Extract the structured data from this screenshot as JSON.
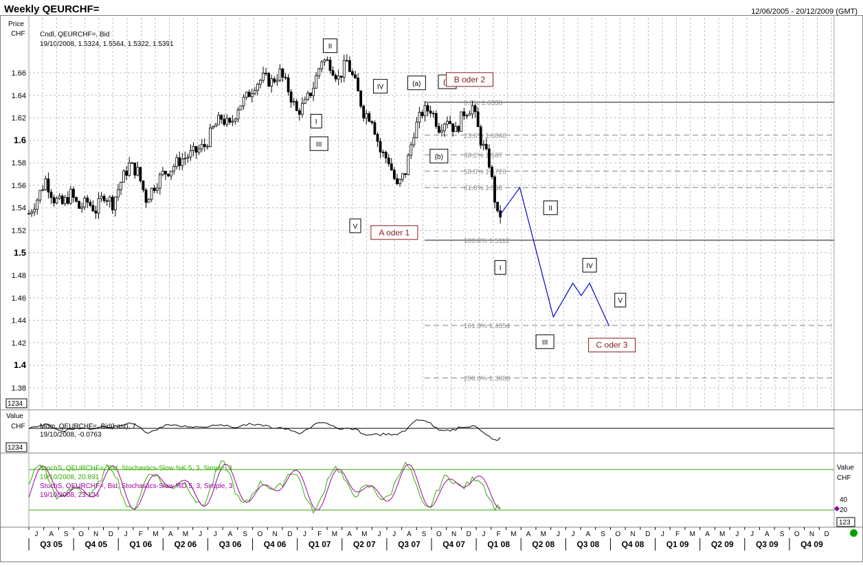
{
  "header": {
    "title": "Weekly QEURCHF=",
    "date_range": "12/06/2005 - 20/12/2009 (GMT)"
  },
  "colors": {
    "background": "#ffffff",
    "grid": "#c0c0c0",
    "candle": "#000000",
    "fib": "#909090",
    "forecast": "#0000cc",
    "annotation_red": "#8b1a1a",
    "stoch_k": "#33aa00",
    "stoch_d": "#990099",
    "status_dot": "#00a000"
  },
  "panes": {
    "price": {
      "axis_title": "Price",
      "axis_unit": "CHF",
      "series_label": "Cndl, QEURCHF=, Bid",
      "last_bar": "19/10/2008, 1.5324, 1.5564, 1.5322, 1.5391",
      "scale_box": "1234"
    },
    "momentum": {
      "axis_title": "Value",
      "axis_unit": "CHF",
      "series_label": "Mom, QEURCHF=, Bid(Last), 7",
      "last_value": "19/10/2008, -0.0763",
      "scale_box": "1234"
    },
    "stochastics": {
      "axis_title": "Value",
      "axis_unit": "CHF",
      "k_label": "StochS, QEURCHF=, Bid, Stochastics-Slow %K 5, 3, Simple, 3",
      "k_value": "19/10/2008, 20.891",
      "d_label": "StochS, QEURCHF=, Bid, Stochastics-Slow %D 5, 3, Simple, 3",
      "d_value": "19/10/2008, 23.134",
      "scale_box": "123",
      "tick_labels": [
        "40",
        "20"
      ]
    }
  },
  "x_axis": {
    "months": [
      "J",
      "A",
      "S",
      "O",
      "N",
      "D",
      "J",
      "F",
      "M",
      "A",
      "M",
      "J",
      "J",
      "A",
      "S",
      "O",
      "N",
      "D",
      "J",
      "F",
      "M",
      "A",
      "M",
      "J",
      "J",
      "A",
      "S",
      "O",
      "N",
      "D",
      "J",
      "F",
      "M",
      "A",
      "M",
      "J",
      "J",
      "A",
      "S",
      "O",
      "N",
      "D",
      "J",
      "F",
      "M",
      "A",
      "M",
      "J",
      "J",
      "A",
      "S",
      "O",
      "N",
      "D"
    ],
    "quarters": [
      "Q3 05",
      "Q4 05",
      "Q1 06",
      "Q2 06",
      "Q3 06",
      "Q4 06",
      "Q1 07",
      "Q2 07",
      "Q3 07",
      "Q4 07",
      "Q1 08",
      "Q2 08",
      "Q3 08",
      "Q4 08",
      "Q1 09",
      "Q2 09",
      "Q3 09",
      "Q4 09"
    ]
  },
  "chart_data": {
    "type": "candlestick",
    "title": "Weekly QEURCHF=",
    "ylabel": "CHF",
    "ylim": [
      1.37,
      1.695
    ],
    "y_ticks": [
      {
        "value": 1.66,
        "label": "1.66",
        "major": false
      },
      {
        "value": 1.64,
        "label": "1.64",
        "major": false
      },
      {
        "value": 1.62,
        "label": "1.62",
        "major": false
      },
      {
        "value": 1.6,
        "label": "1.6",
        "major": true
      },
      {
        "value": 1.58,
        "label": "1.58",
        "major": false
      },
      {
        "value": 1.56,
        "label": "1.56",
        "major": false
      },
      {
        "value": 1.54,
        "label": "1.54",
        "major": false
      },
      {
        "value": 1.52,
        "label": "1.52",
        "major": false
      },
      {
        "value": 1.5,
        "label": "1.5",
        "major": true
      },
      {
        "value": 1.48,
        "label": "1.48",
        "major": false
      },
      {
        "value": 1.46,
        "label": "1.46",
        "major": false
      },
      {
        "value": 1.44,
        "label": "1.44",
        "major": false
      },
      {
        "value": 1.42,
        "label": "1.42",
        "major": false
      },
      {
        "value": 1.4,
        "label": "1.4",
        "major": true
      },
      {
        "value": 1.38,
        "label": "1.38",
        "major": false
      }
    ],
    "close_path": [
      [
        0,
        1.535
      ],
      [
        3,
        1.548
      ],
      [
        6,
        1.565
      ],
      [
        9,
        1.548
      ],
      [
        12,
        1.543
      ],
      [
        15,
        1.552
      ],
      [
        18,
        1.54
      ],
      [
        21,
        1.545
      ],
      [
        24,
        1.538
      ],
      [
        27,
        1.552
      ],
      [
        30,
        1.544
      ],
      [
        33,
        1.563
      ],
      [
        36,
        1.578
      ],
      [
        39,
        1.572
      ],
      [
        42,
        1.548
      ],
      [
        45,
        1.56
      ],
      [
        48,
        1.57
      ],
      [
        51,
        1.575
      ],
      [
        54,
        1.582
      ],
      [
        57,
        1.586
      ],
      [
        60,
        1.59
      ],
      [
        63,
        1.595
      ],
      [
        66,
        1.61
      ],
      [
        69,
        1.62
      ],
      [
        72,
        1.612
      ],
      [
        75,
        1.63
      ],
      [
        78,
        1.638
      ],
      [
        81,
        1.65
      ],
      [
        84,
        1.655
      ],
      [
        87,
        1.652
      ],
      [
        90,
        1.66
      ],
      [
        93,
        1.645
      ],
      [
        96,
        1.625
      ],
      [
        99,
        1.632
      ],
      [
        102,
        1.648
      ],
      [
        105,
        1.672
      ],
      [
        108,
        1.668
      ],
      [
        111,
        1.655
      ],
      [
        114,
        1.67
      ],
      [
        117,
        1.65
      ],
      [
        120,
        1.625
      ],
      [
        123,
        1.62
      ],
      [
        126,
        1.59
      ],
      [
        129,
        1.582
      ],
      [
        132,
        1.558
      ],
      [
        135,
        1.572
      ],
      [
        138,
        1.608
      ],
      [
        141,
        1.625
      ],
      [
        144,
        1.628
      ],
      [
        147,
        1.612
      ],
      [
        150,
        1.62
      ],
      [
        153,
        1.608
      ],
      [
        156,
        1.625
      ],
      [
        159,
        1.63
      ],
      [
        162,
        1.6
      ],
      [
        165,
        1.58
      ],
      [
        168,
        1.532
      ],
      [
        169,
        1.534
      ]
    ],
    "fib_levels": [
      {
        "label": "0.0%",
        "value": 1.6338,
        "text": "1.6338",
        "solid": true
      },
      {
        "label": "23.6%",
        "value": 1.6046,
        "text": "1.6046",
        "solid": false
      },
      {
        "label": "38.2%",
        "value": 1.587,
        "text": "1.587",
        "solid": false
      },
      {
        "label": "50.0%",
        "value": 1.5726,
        "text": "1.5726",
        "solid": false
      },
      {
        "label": "61.8%",
        "value": 1.558,
        "text": "1.558",
        "solid": false
      },
      {
        "label": "100.0%",
        "value": 1.5112,
        "text": "1.5112",
        "solid": true
      },
      {
        "label": "161.8%",
        "value": 1.4354,
        "text": "1.4354",
        "solid": false
      },
      {
        "label": "200.0%",
        "value": 1.3888,
        "text": "1.3888",
        "solid": false
      }
    ],
    "forecast_path": [
      [
        169,
        1.534
      ],
      [
        176,
        1.558
      ],
      [
        188,
        1.443
      ],
      [
        195,
        1.473
      ],
      [
        198,
        1.462
      ],
      [
        201,
        1.473
      ],
      [
        208,
        1.435
      ]
    ],
    "wave_labels": [
      {
        "text": "II",
        "week": 108,
        "value": 1.684,
        "red": false
      },
      {
        "text": "IV",
        "week": 126,
        "value": 1.648,
        "red": false
      },
      {
        "text": "(a)",
        "week": 139,
        "value": 1.651,
        "red": false
      },
      {
        "text": "(c)",
        "week": 150,
        "value": 1.652,
        "red": false
      },
      {
        "text": "B oder 2",
        "week": 158,
        "value": 1.654,
        "red": true
      },
      {
        "text": "I",
        "week": 103,
        "value": 1.617,
        "red": false
      },
      {
        "text": "III",
        "week": 104,
        "value": 1.597,
        "red": false
      },
      {
        "text": "(b)",
        "week": 147,
        "value": 1.586,
        "red": false
      },
      {
        "text": "V",
        "week": 117,
        "value": 1.524,
        "red": false
      },
      {
        "text": "A oder 1",
        "week": 131,
        "value": 1.518,
        "red": true
      },
      {
        "text": "I",
        "week": 169,
        "value": 1.487,
        "red": false
      },
      {
        "text": "II",
        "week": 187,
        "value": 1.54,
        "red": false
      },
      {
        "text": "IV",
        "week": 201,
        "value": 1.489,
        "red": false
      },
      {
        "text": "V",
        "week": 212,
        "value": 1.458,
        "red": false
      },
      {
        "text": "III",
        "week": 185,
        "value": 1.421,
        "red": false
      },
      {
        "text": "C oder 3",
        "week": 209,
        "value": 1.418,
        "red": true
      }
    ]
  }
}
